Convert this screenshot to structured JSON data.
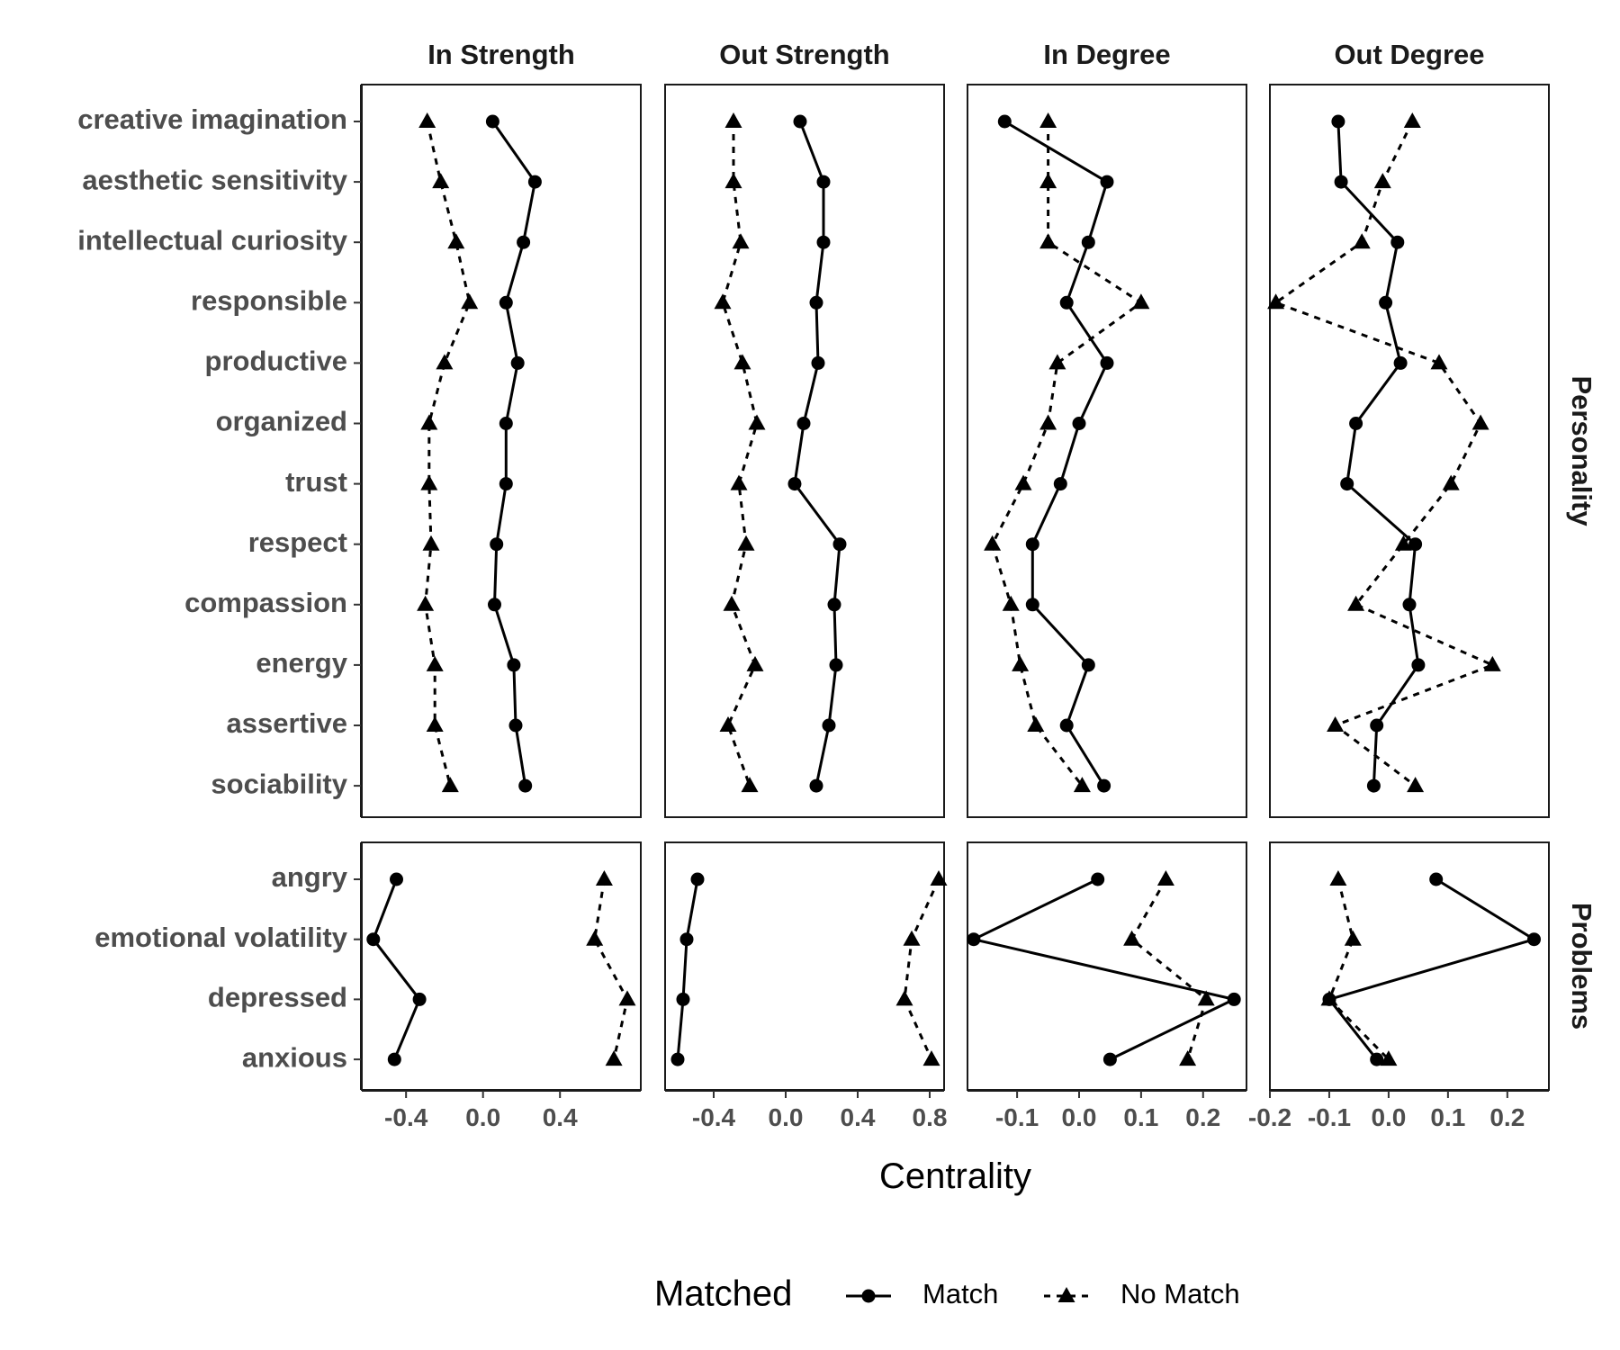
{
  "chart_data": {
    "type": "line",
    "xlabel": "Centrality",
    "legend": {
      "title": "Matched",
      "position": "bottom",
      "entries": [
        {
          "name": "Match",
          "marker": "circle",
          "line": "solid"
        },
        {
          "name": "No Match",
          "marker": "triangle",
          "line": "dashed"
        }
      ]
    },
    "row_facets": [
      {
        "label": "Personality",
        "categories": [
          "creative imagination",
          "aesthetic sensitivity",
          "intellectual curiosity",
          "responsible",
          "productive",
          "organized",
          "trust",
          "respect",
          "compassion",
          "energy",
          "assertive",
          "sociability"
        ]
      },
      {
        "label": "Problems",
        "categories": [
          "angry",
          "emotional volatility",
          "depressed",
          "anxious"
        ]
      }
    ],
    "col_facets": [
      {
        "label": "In Strength",
        "xlim": [
          -0.63,
          0.82
        ],
        "ticks": [
          -0.4,
          0.0,
          0.4
        ],
        "tick_labels": [
          "-0.4",
          "0.0",
          "0.4"
        ],
        "series": [
          {
            "name": "Match",
            "personality": [
              0.05,
              0.27,
              0.21,
              0.12,
              0.18,
              0.12,
              0.12,
              0.07,
              0.06,
              0.16,
              0.17,
              0.22
            ],
            "problems": [
              -0.45,
              -0.57,
              -0.33,
              -0.46
            ]
          },
          {
            "name": "No Match",
            "personality": [
              -0.29,
              -0.22,
              -0.14,
              -0.07,
              -0.2,
              -0.28,
              -0.28,
              -0.27,
              -0.3,
              -0.25,
              -0.25,
              -0.17
            ],
            "problems": [
              0.63,
              0.58,
              0.75,
              0.68
            ]
          }
        ]
      },
      {
        "label": "Out Strength",
        "xlim": [
          -0.67,
          0.88
        ],
        "ticks": [
          -0.4,
          0.0,
          0.4,
          0.8
        ],
        "tick_labels": [
          "-0.4",
          "0.0",
          "0.4",
          "0.8"
        ],
        "series": [
          {
            "name": "Match",
            "personality": [
              0.08,
              0.21,
              0.21,
              0.17,
              0.18,
              0.1,
              0.05,
              0.3,
              0.27,
              0.28,
              0.24,
              0.17
            ],
            "problems": [
              -0.49,
              -0.55,
              -0.57,
              -0.6
            ]
          },
          {
            "name": "No Match",
            "personality": [
              -0.29,
              -0.29,
              -0.25,
              -0.35,
              -0.24,
              -0.16,
              -0.26,
              -0.22,
              -0.3,
              -0.17,
              -0.32,
              -0.2
            ],
            "problems": [
              0.85,
              0.7,
              0.66,
              0.81
            ]
          }
        ]
      },
      {
        "label": "In Degree",
        "xlim": [
          -0.18,
          0.27
        ],
        "ticks": [
          -0.1,
          0.0,
          0.1,
          0.2
        ],
        "tick_labels": [
          "-0.1",
          "0.0",
          "0.1",
          "0.2"
        ],
        "series": [
          {
            "name": "Match",
            "personality": [
              -0.12,
              0.045,
              0.015,
              -0.02,
              0.045,
              0.0,
              -0.03,
              -0.075,
              -0.075,
              0.015,
              -0.02,
              0.04
            ],
            "problems": [
              0.03,
              -0.17,
              0.25,
              0.05
            ]
          },
          {
            "name": "No Match",
            "personality": [
              -0.05,
              -0.05,
              -0.05,
              0.1,
              -0.035,
              -0.05,
              -0.09,
              -0.14,
              -0.11,
              -0.095,
              -0.07,
              0.005
            ],
            "problems": [
              0.14,
              0.085,
              0.205,
              0.175
            ]
          }
        ]
      },
      {
        "label": "Out Degree",
        "xlim": [
          -0.2,
          0.27
        ],
        "ticks": [
          -0.2,
          -0.1,
          0.0,
          0.1,
          0.2
        ],
        "tick_labels": [
          "-0.2",
          "-0.1",
          "0.0",
          "0.1",
          "0.2"
        ],
        "series": [
          {
            "name": "Match",
            "personality": [
              -0.085,
              -0.08,
              0.015,
              -0.005,
              0.02,
              -0.055,
              -0.07,
              0.045,
              0.035,
              0.05,
              -0.02,
              -0.025
            ],
            "problems": [
              0.08,
              0.245,
              -0.1,
              -0.02
            ]
          },
          {
            "name": "No Match",
            "personality": [
              0.04,
              -0.01,
              -0.045,
              -0.19,
              0.085,
              0.155,
              0.105,
              0.025,
              -0.055,
              0.175,
              -0.09,
              0.045
            ],
            "problems": [
              -0.085,
              -0.06,
              -0.1,
              0.0
            ]
          }
        ]
      }
    ],
    "grid": false
  }
}
